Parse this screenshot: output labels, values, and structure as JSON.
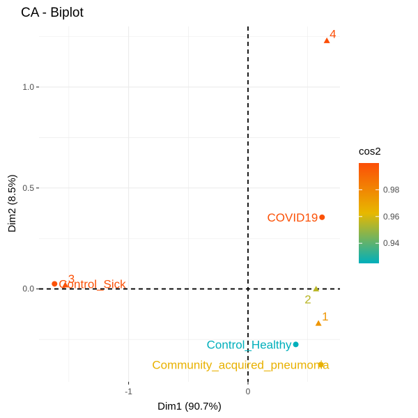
{
  "chart_data": {
    "type": "scatter",
    "title": "CA - Biplot",
    "xlabel": "Dim1 (90.7%)",
    "ylabel": "Dim2 (8.5%)",
    "xlim": [
      -1.75,
      0.77
    ],
    "ylim": [
      -0.46,
      1.3
    ],
    "x_ticks": [
      {
        "value": -1,
        "label": "-1"
      },
      {
        "value": 0,
        "label": "0"
      }
    ],
    "y_ticks": [
      {
        "value": 0.0,
        "label": "0.0"
      },
      {
        "value": 0.5,
        "label": "0.5"
      },
      {
        "value": 1.0,
        "label": "1.0"
      }
    ],
    "grid": true,
    "reference_lines": [
      {
        "axis": "x",
        "value": 0,
        "style": "dashed"
      },
      {
        "axis": "y",
        "value": 0,
        "style": "dashed"
      }
    ],
    "legend": {
      "title": "cos2",
      "placement": "right",
      "min": 0.925,
      "max": 1.0,
      "ticks": [
        0.94,
        0.96,
        0.98
      ],
      "colors": [
        "#00AFBB",
        "#E7B800",
        "#FC4E07"
      ]
    },
    "points": [
      {
        "label": "4",
        "shape": "triangle",
        "x": 0.66,
        "y": 1.23,
        "cos2": 1.0
      },
      {
        "label": "COVID19",
        "shape": "circle",
        "x": 0.62,
        "y": 0.355,
        "cos2": 0.999
      },
      {
        "label": "3",
        "shape": "triangle",
        "x": -1.53,
        "y": 0.02,
        "cos2": 0.999
      },
      {
        "label": "Control_Sick",
        "shape": "circle",
        "x": -1.62,
        "y": 0.025,
        "cos2": 0.999
      },
      {
        "label": "2",
        "shape": "triangle",
        "x": 0.57,
        "y": 0.0,
        "cos2": 0.955
      },
      {
        "label": "1",
        "shape": "triangle",
        "x": 0.59,
        "y": -0.17,
        "cos2": 0.975
      },
      {
        "label": "Control_Healthy",
        "shape": "circle",
        "x": 0.4,
        "y": -0.275,
        "cos2": 0.925
      },
      {
        "label": "Community_acquired_pneumonia",
        "shape": "circle",
        "x": 0.61,
        "y": -0.375,
        "cos2": 0.965
      }
    ]
  }
}
